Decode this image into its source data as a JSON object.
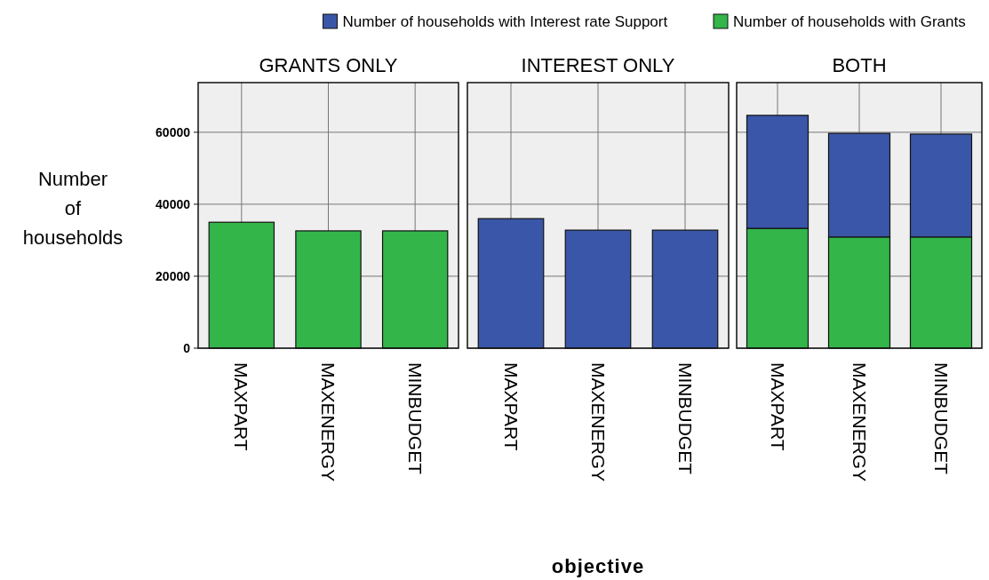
{
  "chart_data": [
    {
      "type": "bar",
      "title": "GRANTS ONLY",
      "ylabel": "Number of households",
      "categories": [
        "MAXPART",
        "MAXENERGY",
        "MINBUDGET"
      ],
      "stacked": true,
      "ylim": [
        0,
        73800
      ],
      "yticks": [
        0,
        20000,
        40000,
        60000
      ],
      "grid": true,
      "legend": "top",
      "series": [
        {
          "name": "Number of households with Grants",
          "color": "#33b54a",
          "values": [
            35000,
            32600,
            32600
          ]
        }
      ]
    },
    {
      "type": "bar",
      "title": "INTEREST ONLY",
      "xlabel": "objective",
      "categories": [
        "MAXPART",
        "MAXENERGY",
        "MINBUDGET"
      ],
      "stacked": true,
      "ylim": [
        0,
        73800
      ],
      "yticks": [
        0,
        20000,
        40000,
        60000
      ],
      "grid": true,
      "tick_labels": "x",
      "legend": "top",
      "series": [
        {
          "name": "Number of households with Interest rate Support",
          "color": "#3a56a8",
          "values": [
            36000,
            32800,
            32800
          ]
        }
      ]
    },
    {
      "type": "bar",
      "title": "BOTH",
      "categories": [
        "MAXPART",
        "MAXENERGY",
        "MINBUDGET"
      ],
      "stacked": true,
      "ylim": [
        0,
        73800
      ],
      "yticks": [
        0,
        20000,
        40000,
        60000
      ],
      "grid": true,
      "tick_labels": "x",
      "legend": "top",
      "series": [
        {
          "name": "Number of households with Grants",
          "color": "#33b54a",
          "values": [
            33300,
            30900,
            30900
          ]
        },
        {
          "name": "Number of households with Interest rate Support",
          "color": "#3a56a8",
          "values": [
            31400,
            28800,
            28600
          ]
        }
      ]
    }
  ]
}
